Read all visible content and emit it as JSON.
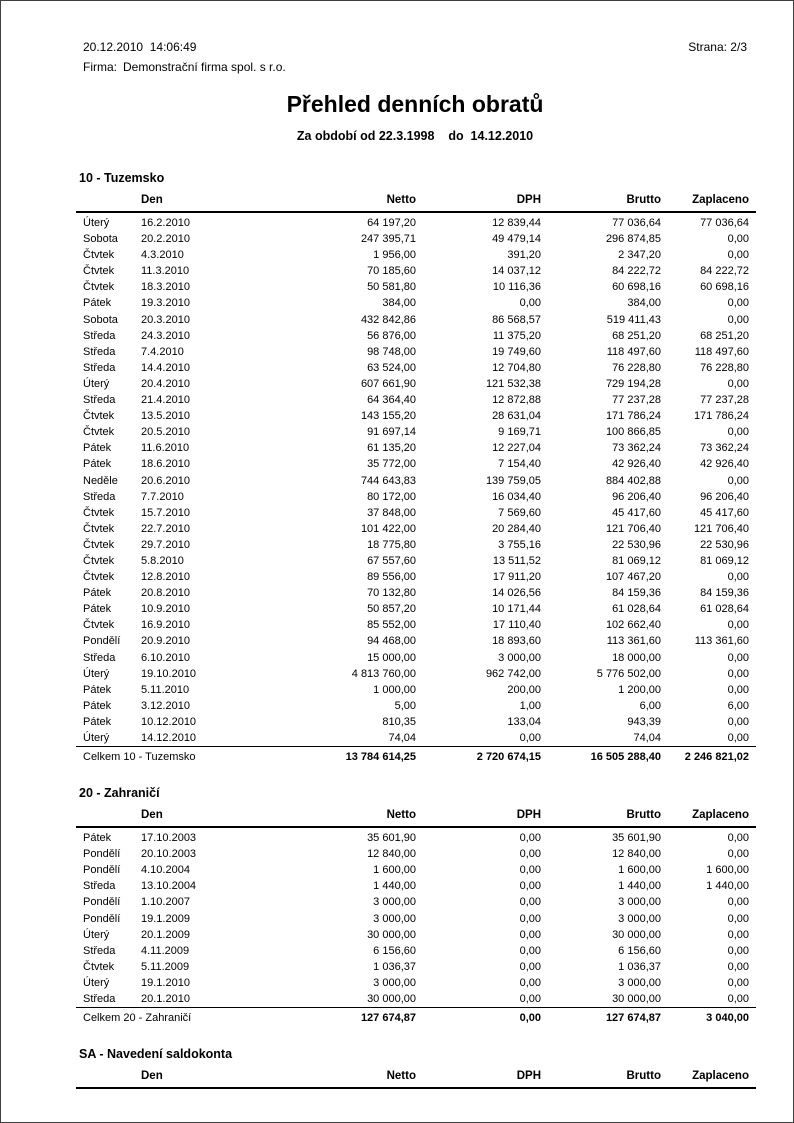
{
  "header": {
    "timestamp": "20.12.2010  14:06:49",
    "page_indicator": "Strana: 2/3",
    "company_label": "Firma:",
    "company_value": "Demonstrační firma spol. s r.o.",
    "title": "Přehled denních obratů",
    "period_line": "Za období od 22.3.1998    do  14.12.2010"
  },
  "table": {
    "columns": [
      "Den",
      "Netto",
      "DPH",
      "Brutto",
      "Zaplaceno"
    ]
  },
  "sections": [
    {
      "title": "10 - Tuzemsko",
      "rows": [
        [
          "Úterý",
          "16.2.2010",
          "64 197,20",
          "12 839,44",
          "77 036,64",
          "77 036,64"
        ],
        [
          "Sobota",
          "20.2.2010",
          "247 395,71",
          "49 479,14",
          "296 874,85",
          "0,00"
        ],
        [
          "Čtvtek",
          "4.3.2010",
          "1 956,00",
          "391,20",
          "2 347,20",
          "0,00"
        ],
        [
          "Čtvtek",
          "11.3.2010",
          "70 185,60",
          "14 037,12",
          "84 222,72",
          "84 222,72"
        ],
        [
          "Čtvtek",
          "18.3.2010",
          "50 581,80",
          "10 116,36",
          "60 698,16",
          "60 698,16"
        ],
        [
          "Pátek",
          "19.3.2010",
          "384,00",
          "0,00",
          "384,00",
          "0,00"
        ],
        [
          "Sobota",
          "20.3.2010",
          "432 842,86",
          "86 568,57",
          "519 411,43",
          "0,00"
        ],
        [
          "Středa",
          "24.3.2010",
          "56 876,00",
          "11 375,20",
          "68 251,20",
          "68 251,20"
        ],
        [
          "Středa",
          "7.4.2010",
          "98 748,00",
          "19 749,60",
          "118 497,60",
          "118 497,60"
        ],
        [
          "Středa",
          "14.4.2010",
          "63 524,00",
          "12 704,80",
          "76 228,80",
          "76 228,80"
        ],
        [
          "Úterý",
          "20.4.2010",
          "607 661,90",
          "121 532,38",
          "729 194,28",
          "0,00"
        ],
        [
          "Středa",
          "21.4.2010",
          "64 364,40",
          "12 872,88",
          "77 237,28",
          "77 237,28"
        ],
        [
          "Čtvtek",
          "13.5.2010",
          "143 155,20",
          "28 631,04",
          "171 786,24",
          "171 786,24"
        ],
        [
          "Čtvtek",
          "20.5.2010",
          "91 697,14",
          "9 169,71",
          "100 866,85",
          "0,00"
        ],
        [
          "Pátek",
          "11.6.2010",
          "61 135,20",
          "12 227,04",
          "73 362,24",
          "73 362,24"
        ],
        [
          "Pátek",
          "18.6.2010",
          "35 772,00",
          "7 154,40",
          "42 926,40",
          "42 926,40"
        ],
        [
          "Neděle",
          "20.6.2010",
          "744 643,83",
          "139 759,05",
          "884 402,88",
          "0,00"
        ],
        [
          "Středa",
          "7.7.2010",
          "80 172,00",
          "16 034,40",
          "96 206,40",
          "96 206,40"
        ],
        [
          "Čtvtek",
          "15.7.2010",
          "37 848,00",
          "7 569,60",
          "45 417,60",
          "45 417,60"
        ],
        [
          "Čtvtek",
          "22.7.2010",
          "101 422,00",
          "20 284,40",
          "121 706,40",
          "121 706,40"
        ],
        [
          "Čtvtek",
          "29.7.2010",
          "18 775,80",
          "3 755,16",
          "22 530,96",
          "22 530,96"
        ],
        [
          "Čtvtek",
          "5.8.2010",
          "67 557,60",
          "13 511,52",
          "81 069,12",
          "81 069,12"
        ],
        [
          "Čtvtek",
          "12.8.2010",
          "89 556,00",
          "17 911,20",
          "107 467,20",
          "0,00"
        ],
        [
          "Pátek",
          "20.8.2010",
          "70 132,80",
          "14 026,56",
          "84 159,36",
          "84 159,36"
        ],
        [
          "Pátek",
          "10.9.2010",
          "50 857,20",
          "10 171,44",
          "61 028,64",
          "61 028,64"
        ],
        [
          "Čtvtek",
          "16.9.2010",
          "85 552,00",
          "17 110,40",
          "102 662,40",
          "0,00"
        ],
        [
          "Pondělí",
          "20.9.2010",
          "94 468,00",
          "18 893,60",
          "113 361,60",
          "113 361,60"
        ],
        [
          "Středa",
          "6.10.2010",
          "15 000,00",
          "3 000,00",
          "18 000,00",
          "0,00"
        ],
        [
          "Úterý",
          "19.10.2010",
          "4 813 760,00",
          "962 742,00",
          "5 776 502,00",
          "0,00"
        ],
        [
          "Pátek",
          "5.11.2010",
          "1 000,00",
          "200,00",
          "1 200,00",
          "0,00"
        ],
        [
          "Pátek",
          "3.12.2010",
          "5,00",
          "1,00",
          "6,00",
          "6,00"
        ],
        [
          "Pátek",
          "10.12.2010",
          "810,35",
          "133,04",
          "943,39",
          "0,00"
        ],
        [
          "Úterý",
          "14.12.2010",
          "74,04",
          "0,00",
          "74,04",
          "0,00"
        ]
      ],
      "total": {
        "label": "Celkem 10 - Tuzemsko",
        "values": [
          "13 784 614,25",
          "2 720 674,15",
          "16 505 288,40",
          "2 246 821,02"
        ]
      }
    },
    {
      "title": "20 - Zahraničí",
      "rows": [
        [
          "Pátek",
          "17.10.2003",
          "35 601,90",
          "0,00",
          "35 601,90",
          "0,00"
        ],
        [
          "Pondělí",
          "20.10.2003",
          "12 840,00",
          "0,00",
          "12 840,00",
          "0,00"
        ],
        [
          "Pondělí",
          "4.10.2004",
          "1 600,00",
          "0,00",
          "1 600,00",
          "1 600,00"
        ],
        [
          "Středa",
          "13.10.2004",
          "1 440,00",
          "0,00",
          "1 440,00",
          "1 440,00"
        ],
        [
          "Pondělí",
          "1.10.2007",
          "3 000,00",
          "0,00",
          "3 000,00",
          "0,00"
        ],
        [
          "Pondělí",
          "19.1.2009",
          "3 000,00",
          "0,00",
          "3 000,00",
          "0,00"
        ],
        [
          "Úterý",
          "20.1.2009",
          "30 000,00",
          "0,00",
          "30 000,00",
          "0,00"
        ],
        [
          "Středa",
          "4.11.2009",
          "6 156,60",
          "0,00",
          "6 156,60",
          "0,00"
        ],
        [
          "Čtvtek",
          "5.11.2009",
          "1 036,37",
          "0,00",
          "1 036,37",
          "0,00"
        ],
        [
          "Úterý",
          "19.1.2010",
          "3 000,00",
          "0,00",
          "3 000,00",
          "0,00"
        ],
        [
          "Středa",
          "20.1.2010",
          "30 000,00",
          "0,00",
          "30 000,00",
          "0,00"
        ]
      ],
      "total": {
        "label": "Celkem 20 - Zahraničí",
        "values": [
          "127 674,87",
          "0,00",
          "127 674,87",
          "3 040,00"
        ]
      }
    },
    {
      "title": "SA - Navedení saldokonta",
      "rows": [],
      "total": null
    }
  ]
}
